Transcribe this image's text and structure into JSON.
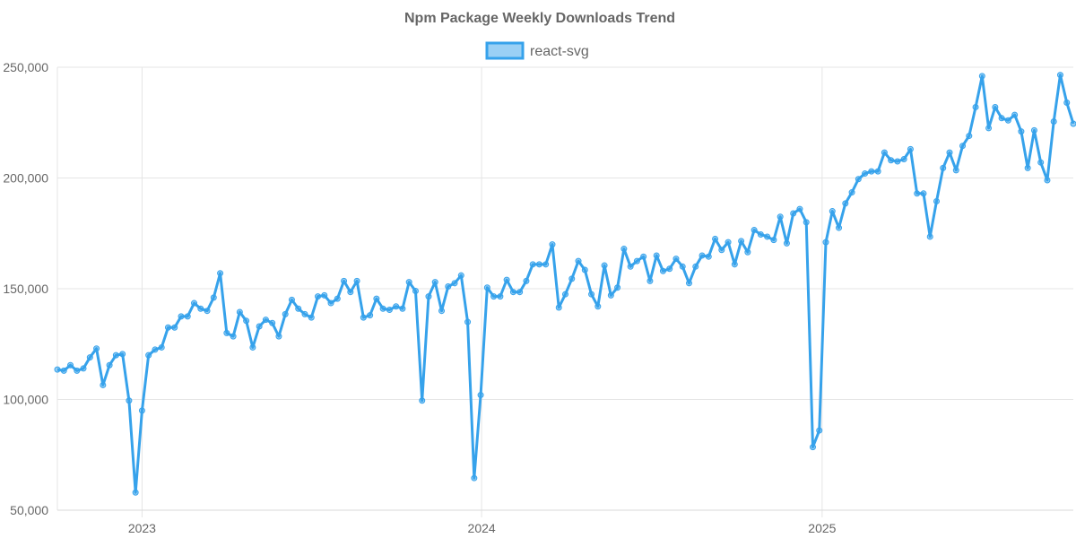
{
  "chart_data": {
    "type": "line",
    "title": "Npm Package Weekly Downloads Trend",
    "xlabel": "",
    "ylabel": "",
    "ylim": [
      50000,
      250000
    ],
    "y_ticks": [
      "50,000",
      "100,000",
      "150,000",
      "200,000",
      "250,000"
    ],
    "x_ticks": [
      "2023",
      "2024",
      "2025"
    ],
    "x_tick_dates": [
      "2023-01-01",
      "2024-01-01",
      "2025-01-01"
    ],
    "xlim": [
      "2022-10-02",
      "2025-09-28"
    ],
    "grid": true,
    "legend_position": "top",
    "colors": {
      "line": "#36a2eb",
      "fill": "#9ad0f5"
    },
    "x": [
      "2022-10-02",
      "2022-10-09",
      "2022-10-16",
      "2022-10-23",
      "2022-10-30",
      "2022-11-06",
      "2022-11-13",
      "2022-11-20",
      "2022-11-27",
      "2022-12-04",
      "2022-12-11",
      "2022-12-18",
      "2022-12-25",
      "2023-01-01",
      "2023-01-08",
      "2023-01-15",
      "2023-01-22",
      "2023-01-29",
      "2023-02-05",
      "2023-02-12",
      "2023-02-19",
      "2023-02-26",
      "2023-03-05",
      "2023-03-12",
      "2023-03-19",
      "2023-03-26",
      "2023-04-02",
      "2023-04-09",
      "2023-04-16",
      "2023-04-23",
      "2023-04-30",
      "2023-05-07",
      "2023-05-14",
      "2023-05-21",
      "2023-05-28",
      "2023-06-04",
      "2023-06-11",
      "2023-06-18",
      "2023-06-25",
      "2023-07-02",
      "2023-07-09",
      "2023-07-16",
      "2023-07-23",
      "2023-07-30",
      "2023-08-06",
      "2023-08-13",
      "2023-08-20",
      "2023-08-27",
      "2023-09-03",
      "2023-09-10",
      "2023-09-17",
      "2023-09-24",
      "2023-10-01",
      "2023-10-08",
      "2023-10-15",
      "2023-10-22",
      "2023-10-29",
      "2023-11-05",
      "2023-11-12",
      "2023-11-19",
      "2023-11-26",
      "2023-12-03",
      "2023-12-10",
      "2023-12-17",
      "2023-12-24",
      "2023-12-31",
      "2024-01-07",
      "2024-01-14",
      "2024-01-21",
      "2024-01-28",
      "2024-02-04",
      "2024-02-11",
      "2024-02-18",
      "2024-02-25",
      "2024-03-03",
      "2024-03-10",
      "2024-03-17",
      "2024-03-24",
      "2024-03-31",
      "2024-04-07",
      "2024-04-14",
      "2024-04-21",
      "2024-04-28",
      "2024-05-05",
      "2024-05-12",
      "2024-05-19",
      "2024-05-26",
      "2024-06-02",
      "2024-06-09",
      "2024-06-16",
      "2024-06-23",
      "2024-06-30",
      "2024-07-07",
      "2024-07-14",
      "2024-07-21",
      "2024-07-28",
      "2024-08-04",
      "2024-08-11",
      "2024-08-18",
      "2024-08-25",
      "2024-09-01",
      "2024-09-08",
      "2024-09-15",
      "2024-09-22",
      "2024-09-29",
      "2024-10-06",
      "2024-10-13",
      "2024-10-20",
      "2024-10-27",
      "2024-11-03",
      "2024-11-10",
      "2024-11-17",
      "2024-11-24",
      "2024-12-01",
      "2024-12-08",
      "2024-12-15",
      "2024-12-22",
      "2024-12-29",
      "2025-01-05",
      "2025-01-12",
      "2025-01-19",
      "2025-01-26",
      "2025-02-02",
      "2025-02-09",
      "2025-02-16",
      "2025-02-23",
      "2025-03-02",
      "2025-03-09",
      "2025-03-16",
      "2025-03-23",
      "2025-03-30",
      "2025-04-06",
      "2025-04-13",
      "2025-04-20",
      "2025-04-27",
      "2025-05-04",
      "2025-05-11",
      "2025-05-18",
      "2025-05-25",
      "2025-06-01",
      "2025-06-08",
      "2025-06-15",
      "2025-06-22",
      "2025-06-29",
      "2025-07-06",
      "2025-07-13",
      "2025-07-20",
      "2025-07-27",
      "2025-08-03",
      "2025-08-10",
      "2025-08-17",
      "2025-08-24",
      "2025-08-31",
      "2025-09-07",
      "2025-09-14",
      "2025-09-21",
      "2025-09-28"
    ],
    "series": [
      {
        "name": "react-svg",
        "values": [
          113500,
          113000,
          115500,
          113000,
          114000,
          119000,
          123000,
          106500,
          115500,
          120000,
          120500,
          99500,
          58000,
          95000,
          120000,
          122500,
          123500,
          132500,
          132500,
          137500,
          137500,
          143500,
          141000,
          140000,
          146000,
          157000,
          130000,
          128500,
          139500,
          135500,
          123500,
          133000,
          136000,
          134500,
          128500,
          138500,
          145000,
          141000,
          138500,
          137000,
          146500,
          147000,
          143500,
          145500,
          153500,
          148500,
          153500,
          137000,
          138000,
          145500,
          141000,
          140500,
          142000,
          141000,
          153000,
          149000,
          99500,
          146500,
          153000,
          140000,
          151000,
          152500,
          156000,
          135000,
          64500,
          102000,
          150500,
          146500,
          146500,
          154000,
          148500,
          148500,
          153500,
          161000,
          161000,
          161000,
          170000,
          141500,
          147500,
          154500,
          162500,
          158500,
          147500,
          142000,
          160500,
          147000,
          150500,
          168000,
          160000,
          162500,
          164500,
          153500,
          165000,
          158000,
          159000,
          163500,
          160000,
          152500,
          160000,
          165000,
          164500,
          172500,
          167500,
          171000,
          161000,
          171500,
          166500,
          176500,
          174500,
          173500,
          172000,
          182500,
          170500,
          184000,
          186000,
          180000,
          78500,
          86000,
          171000,
          185000,
          177500,
          188500,
          193500,
          199500,
          202000,
          203000,
          203000,
          211500,
          208000,
          207500,
          208500,
          213000,
          193000,
          193000,
          173500,
          189500,
          204500,
          211500,
          203500,
          214500,
          219000,
          232000,
          246000,
          222500,
          232000,
          227000,
          226000,
          228500,
          221000,
          204500,
          221500,
          207000,
          199000,
          225500,
          246500,
          234000,
          224500
        ]
      }
    ]
  }
}
